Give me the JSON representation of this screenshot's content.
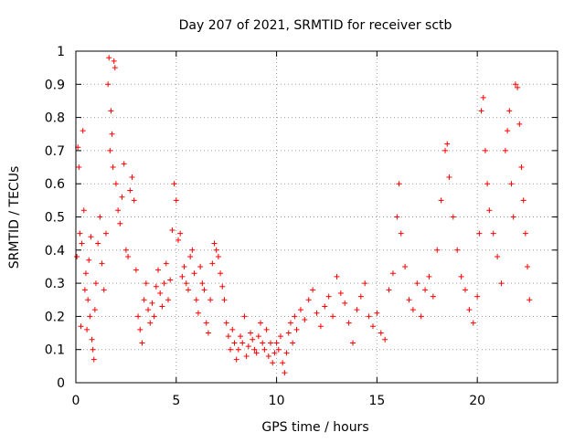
{
  "colors": {
    "series": "#ff0000",
    "axis": "#000000",
    "grid": "#a0a0a0"
  },
  "chart_data": {
    "type": "scatter",
    "title": "Day 207 of 2021, SRMTID for receiver sctb",
    "xlabel": "GPS time / hours",
    "ylabel": "SRMTID / TECUs",
    "xlim": [
      0,
      24
    ],
    "ylim": [
      0,
      1
    ],
    "x_ticks": [
      0,
      5,
      10,
      15,
      20
    ],
    "x_tick_labels": [
      "0",
      "5",
      "10",
      "15",
      "20"
    ],
    "y_ticks": [
      0,
      0.1,
      0.2,
      0.3,
      0.4,
      0.5,
      0.6,
      0.7,
      0.8,
      0.9,
      1
    ],
    "y_tick_labels": [
      "0",
      "0.1",
      "0.2",
      "0.3",
      "0.4",
      "0.5",
      "0.6",
      "0.7",
      "0.8",
      "0.9",
      "1"
    ],
    "grid": true,
    "marker": "+",
    "series": [
      {
        "name": "SRMTID",
        "points": [
          [
            0.05,
            0.38
          ],
          [
            0.1,
            0.71
          ],
          [
            0.15,
            0.65
          ],
          [
            0.2,
            0.45
          ],
          [
            0.25,
            0.17
          ],
          [
            0.3,
            0.42
          ],
          [
            0.35,
            0.76
          ],
          [
            0.4,
            0.52
          ],
          [
            0.45,
            0.28
          ],
          [
            0.5,
            0.33
          ],
          [
            0.55,
            0.16
          ],
          [
            0.6,
            0.25
          ],
          [
            0.65,
            0.37
          ],
          [
            0.7,
            0.2
          ],
          [
            0.75,
            0.44
          ],
          [
            0.8,
            0.13
          ],
          [
            0.85,
            0.1
          ],
          [
            0.9,
            0.07
          ],
          [
            0.95,
            0.22
          ],
          [
            1.0,
            0.3
          ],
          [
            1.1,
            0.42
          ],
          [
            1.2,
            0.5
          ],
          [
            1.3,
            0.36
          ],
          [
            1.4,
            0.28
          ],
          [
            1.5,
            0.45
          ],
          [
            1.6,
            0.9
          ],
          [
            1.65,
            0.98
          ],
          [
            1.7,
            0.7
          ],
          [
            1.75,
            0.82
          ],
          [
            1.8,
            0.75
          ],
          [
            1.85,
            0.65
          ],
          [
            1.9,
            0.97
          ],
          [
            1.95,
            0.95
          ],
          [
            2.0,
            0.6
          ],
          [
            2.1,
            0.52
          ],
          [
            2.2,
            0.48
          ],
          [
            2.3,
            0.56
          ],
          [
            2.4,
            0.66
          ],
          [
            2.5,
            0.4
          ],
          [
            2.6,
            0.38
          ],
          [
            2.7,
            0.58
          ],
          [
            2.8,
            0.62
          ],
          [
            2.9,
            0.55
          ],
          [
            3.0,
            0.34
          ],
          [
            3.1,
            0.2
          ],
          [
            3.2,
            0.16
          ],
          [
            3.3,
            0.12
          ],
          [
            3.4,
            0.25
          ],
          [
            3.5,
            0.3
          ],
          [
            3.6,
            0.22
          ],
          [
            3.7,
            0.18
          ],
          [
            3.8,
            0.24
          ],
          [
            3.9,
            0.2
          ],
          [
            4.0,
            0.29
          ],
          [
            4.1,
            0.34
          ],
          [
            4.2,
            0.27
          ],
          [
            4.3,
            0.23
          ],
          [
            4.4,
            0.3
          ],
          [
            4.5,
            0.36
          ],
          [
            4.6,
            0.25
          ],
          [
            4.7,
            0.31
          ],
          [
            4.8,
            0.46
          ],
          [
            4.9,
            0.6
          ],
          [
            5.0,
            0.55
          ],
          [
            5.1,
            0.43
          ],
          [
            5.2,
            0.45
          ],
          [
            5.3,
            0.32
          ],
          [
            5.4,
            0.35
          ],
          [
            5.5,
            0.3
          ],
          [
            5.6,
            0.28
          ],
          [
            5.7,
            0.38
          ],
          [
            5.8,
            0.4
          ],
          [
            5.9,
            0.33
          ],
          [
            6.0,
            0.25
          ],
          [
            6.1,
            0.21
          ],
          [
            6.2,
            0.35
          ],
          [
            6.3,
            0.3
          ],
          [
            6.4,
            0.28
          ],
          [
            6.5,
            0.18
          ],
          [
            6.6,
            0.15
          ],
          [
            6.7,
            0.25
          ],
          [
            6.8,
            0.36
          ],
          [
            6.9,
            0.42
          ],
          [
            7.0,
            0.4
          ],
          [
            7.1,
            0.38
          ],
          [
            7.2,
            0.33
          ],
          [
            7.3,
            0.29
          ],
          [
            7.4,
            0.25
          ],
          [
            7.5,
            0.18
          ],
          [
            7.6,
            0.14
          ],
          [
            7.7,
            0.1
          ],
          [
            7.8,
            0.16
          ],
          [
            7.9,
            0.12
          ],
          [
            8.0,
            0.07
          ],
          [
            8.1,
            0.1
          ],
          [
            8.2,
            0.14
          ],
          [
            8.3,
            0.12
          ],
          [
            8.4,
            0.2
          ],
          [
            8.5,
            0.08
          ],
          [
            8.6,
            0.11
          ],
          [
            8.7,
            0.15
          ],
          [
            8.8,
            0.13
          ],
          [
            8.9,
            0.1
          ],
          [
            9.0,
            0.09
          ],
          [
            9.1,
            0.14
          ],
          [
            9.2,
            0.18
          ],
          [
            9.3,
            0.12
          ],
          [
            9.4,
            0.1
          ],
          [
            9.5,
            0.16
          ],
          [
            9.6,
            0.08
          ],
          [
            9.7,
            0.12
          ],
          [
            9.8,
            0.06
          ],
          [
            9.9,
            0.09
          ],
          [
            10.0,
            0.12
          ],
          [
            10.1,
            0.1
          ],
          [
            10.2,
            0.14
          ],
          [
            10.3,
            0.06
          ],
          [
            10.4,
            0.03
          ],
          [
            10.5,
            0.09
          ],
          [
            10.6,
            0.15
          ],
          [
            10.7,
            0.18
          ],
          [
            10.8,
            0.12
          ],
          [
            10.9,
            0.2
          ],
          [
            11.0,
            0.16
          ],
          [
            11.2,
            0.22
          ],
          [
            11.4,
            0.19
          ],
          [
            11.6,
            0.25
          ],
          [
            11.8,
            0.28
          ],
          [
            12.0,
            0.21
          ],
          [
            12.2,
            0.17
          ],
          [
            12.4,
            0.23
          ],
          [
            12.6,
            0.26
          ],
          [
            12.8,
            0.2
          ],
          [
            13.0,
            0.32
          ],
          [
            13.2,
            0.27
          ],
          [
            13.4,
            0.24
          ],
          [
            13.6,
            0.18
          ],
          [
            13.8,
            0.12
          ],
          [
            14.0,
            0.22
          ],
          [
            14.2,
            0.26
          ],
          [
            14.4,
            0.3
          ],
          [
            14.6,
            0.2
          ],
          [
            14.8,
            0.17
          ],
          [
            15.0,
            0.21
          ],
          [
            15.2,
            0.15
          ],
          [
            15.4,
            0.13
          ],
          [
            15.6,
            0.28
          ],
          [
            15.8,
            0.33
          ],
          [
            16.0,
            0.5
          ],
          [
            16.1,
            0.6
          ],
          [
            16.2,
            0.45
          ],
          [
            16.4,
            0.35
          ],
          [
            16.6,
            0.25
          ],
          [
            16.8,
            0.22
          ],
          [
            17.0,
            0.3
          ],
          [
            17.2,
            0.2
          ],
          [
            17.4,
            0.28
          ],
          [
            17.6,
            0.32
          ],
          [
            17.8,
            0.26
          ],
          [
            18.0,
            0.4
          ],
          [
            18.2,
            0.55
          ],
          [
            18.4,
            0.7
          ],
          [
            18.5,
            0.72
          ],
          [
            18.6,
            0.62
          ],
          [
            18.8,
            0.5
          ],
          [
            19.0,
            0.4
          ],
          [
            19.2,
            0.32
          ],
          [
            19.4,
            0.28
          ],
          [
            19.6,
            0.22
          ],
          [
            19.8,
            0.18
          ],
          [
            20.0,
            0.26
          ],
          [
            20.1,
            0.45
          ],
          [
            20.2,
            0.82
          ],
          [
            20.3,
            0.86
          ],
          [
            20.4,
            0.7
          ],
          [
            20.5,
            0.6
          ],
          [
            20.6,
            0.52
          ],
          [
            20.8,
            0.45
          ],
          [
            21.0,
            0.38
          ],
          [
            21.2,
            0.3
          ],
          [
            21.4,
            0.7
          ],
          [
            21.5,
            0.76
          ],
          [
            21.6,
            0.82
          ],
          [
            21.7,
            0.6
          ],
          [
            21.8,
            0.5
          ],
          [
            21.9,
            0.9
          ],
          [
            22.0,
            0.89
          ],
          [
            22.1,
            0.78
          ],
          [
            22.2,
            0.65
          ],
          [
            22.3,
            0.55
          ],
          [
            22.4,
            0.45
          ],
          [
            22.5,
            0.35
          ],
          [
            22.6,
            0.25
          ]
        ]
      }
    ]
  }
}
